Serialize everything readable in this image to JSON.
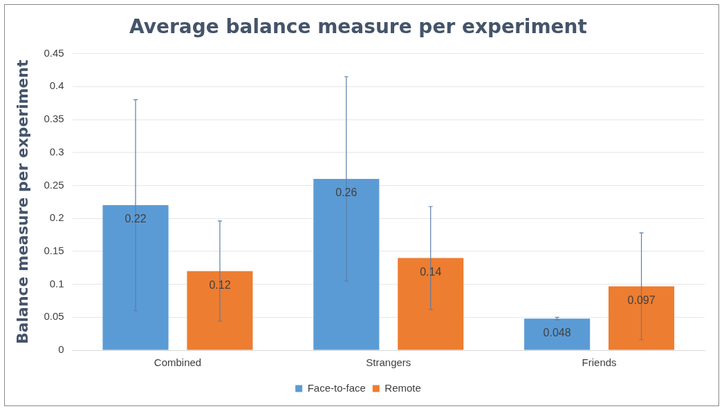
{
  "chart_data": {
    "type": "bar",
    "title": "Average balance measure per experiment",
    "ylabel": "Balance measure per experiment",
    "categories": [
      "Combined",
      "Strangers",
      "Friends"
    ],
    "series": [
      {
        "name": "Face-to-face",
        "color": "#5b9bd5",
        "values": [
          0.22,
          0.26,
          0.048
        ],
        "errors": [
          0.16,
          0.155,
          0.002
        ]
      },
      {
        "name": "Remote",
        "color": "#ed7d31",
        "values": [
          0.12,
          0.14,
          0.097
        ],
        "errors": [
          0.076,
          0.078,
          0.081
        ]
      }
    ],
    "ylim": [
      0,
      0.45
    ],
    "yticks": [
      0,
      0.05,
      0.1,
      0.15,
      0.2,
      0.25,
      0.3,
      0.35,
      0.4,
      0.45
    ],
    "grid": "y",
    "legend": "bottom",
    "data_labels": true
  }
}
